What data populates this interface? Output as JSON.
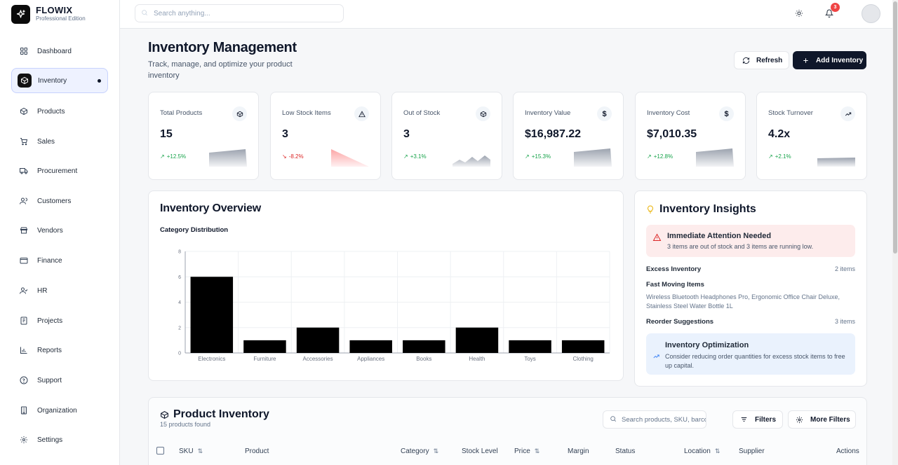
{
  "brand": {
    "name": "FLOWIX",
    "edition": "Professional Edition"
  },
  "sidebar": {
    "items": [
      {
        "label": "Dashboard",
        "icon": "dashboard-icon"
      },
      {
        "label": "Inventory",
        "icon": "box-icon",
        "active": true
      },
      {
        "label": "Products",
        "icon": "cube-icon"
      },
      {
        "label": "Sales",
        "icon": "cart-icon"
      },
      {
        "label": "Procurement",
        "icon": "truck-icon"
      },
      {
        "label": "Customers",
        "icon": "users-icon"
      },
      {
        "label": "Vendors",
        "icon": "store-icon"
      },
      {
        "label": "Finance",
        "icon": "wallet-icon"
      },
      {
        "label": "HR",
        "icon": "user-check-icon"
      },
      {
        "label": "Projects",
        "icon": "briefcase-icon"
      },
      {
        "label": "Reports",
        "icon": "bar-chart-icon"
      },
      {
        "label": "Support",
        "icon": "help-circle-icon"
      },
      {
        "label": "Organization",
        "icon": "building-icon"
      },
      {
        "label": "Settings",
        "icon": "gear-icon"
      }
    ]
  },
  "topbar": {
    "search_placeholder": "Search anything...",
    "notification_count": "3"
  },
  "header": {
    "title": "Inventory Management",
    "subtitle": "Track, manage, and optimize your product inventory",
    "refresh_label": "Refresh",
    "add_label": "Add Inventory"
  },
  "stats": [
    {
      "label": "Total Products",
      "value": "15",
      "change": "+12.5%",
      "trend": "up",
      "icon": "cube-icon"
    },
    {
      "label": "Low Stock Items",
      "value": "3",
      "change": "-8.2%",
      "trend": "down",
      "icon": "warning-icon"
    },
    {
      "label": "Out of Stock",
      "value": "3",
      "change": "+3.1%",
      "trend": "up",
      "icon": "cube-icon"
    },
    {
      "label": "Inventory Value",
      "value": "$16,987.22",
      "change": "+15.3%",
      "trend": "up",
      "icon": "dollar-icon"
    },
    {
      "label": "Inventory Cost",
      "value": "$7,010.35",
      "change": "+12.8%",
      "trend": "up",
      "icon": "dollar-icon"
    },
    {
      "label": "Stock Turnover",
      "value": "4.2x",
      "change": "+2.1%",
      "trend": "up",
      "icon": "trending-up-icon"
    }
  ],
  "colors": {
    "up": "#16a34a",
    "down": "#dc2626",
    "accent": "#0f172a"
  },
  "overview": {
    "title": "Inventory Overview",
    "subtitle": "Category Distribution"
  },
  "chart_data": {
    "type": "bar",
    "categories": [
      "Electronics",
      "Furniture",
      "Accessories",
      "Appliances",
      "Books",
      "Health",
      "Toys",
      "Clothing"
    ],
    "values": [
      6,
      1,
      2,
      1,
      1,
      2,
      1,
      1
    ],
    "ylim": [
      0,
      8
    ],
    "yticks": [
      0,
      2,
      4,
      6,
      8
    ],
    "grid": true,
    "bar_color": "#000000"
  },
  "insights": {
    "title": "Inventory Insights",
    "alert_title": "Immediate Attention Needed",
    "alert_text": "3 items are out of stock and 3 items are running low.",
    "excess_label": "Excess Inventory",
    "excess_value": "2 items",
    "fast_label": "Fast Moving Items",
    "fast_text": "Wireless Bluetooth Headphones Pro, Ergonomic Office Chair Deluxe, Stainless Steel Water Bottle 1L",
    "reorder_label": "Reorder Suggestions",
    "reorder_value": "3 items",
    "opt_title": "Inventory Optimization",
    "opt_text": "Consider reducing order quantities for excess stock items to free up capital."
  },
  "products": {
    "title": "Product Inventory",
    "count": "15 products found",
    "search_placeholder": "Search products, SKU, barcode...",
    "filters_label": "Filters",
    "more_filters_label": "More Filters",
    "columns": [
      "SKU",
      "Product",
      "Category",
      "Stock Level",
      "Price",
      "Margin",
      "Status",
      "Location",
      "Supplier",
      "Actions"
    ]
  }
}
